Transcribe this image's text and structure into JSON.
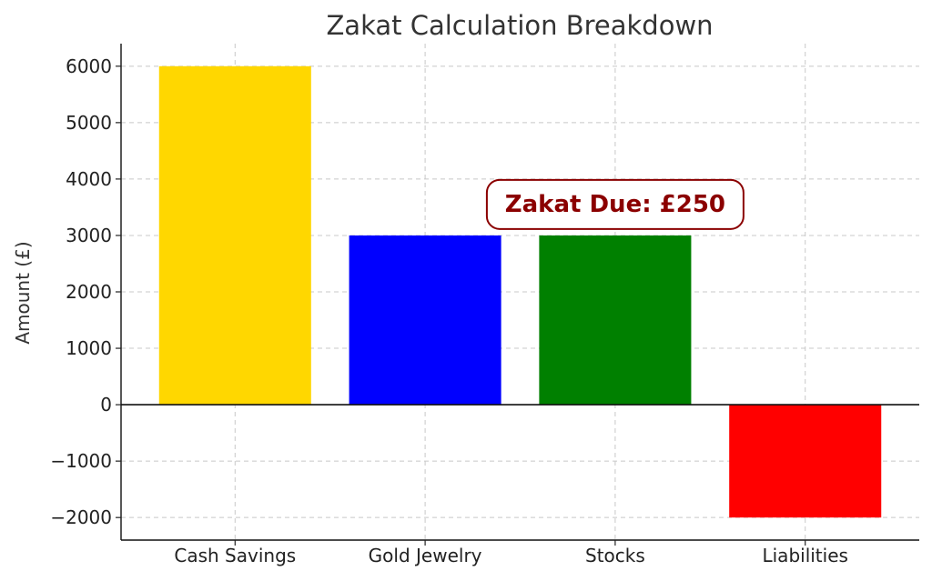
{
  "chart_data": {
    "type": "bar",
    "title": "Zakat Calculation Breakdown",
    "xlabel": "",
    "ylabel": "Amount (£)",
    "categories": [
      "Cash Savings",
      "Gold Jewelry",
      "Stocks",
      "Liabilities"
    ],
    "values": [
      6000,
      3000,
      3000,
      -2000
    ],
    "colors": [
      "#ffd700",
      "#0000ff",
      "#008000",
      "#ff0000"
    ],
    "ylim": [
      -2400,
      6400
    ],
    "yticks": [
      -2000,
      -1000,
      0,
      1000,
      2000,
      3000,
      4000,
      5000,
      6000
    ],
    "ytick_labels": [
      "−2000",
      "−1000",
      "0",
      "1000",
      "2000",
      "3000",
      "4000",
      "5000",
      "6000"
    ],
    "grid": true,
    "zero_line": true,
    "annotation": {
      "text": "Zakat Due: £250",
      "x_category": "Stocks",
      "y": 3550,
      "text_color": "#8b0000",
      "border_color": "#8b0000"
    }
  }
}
